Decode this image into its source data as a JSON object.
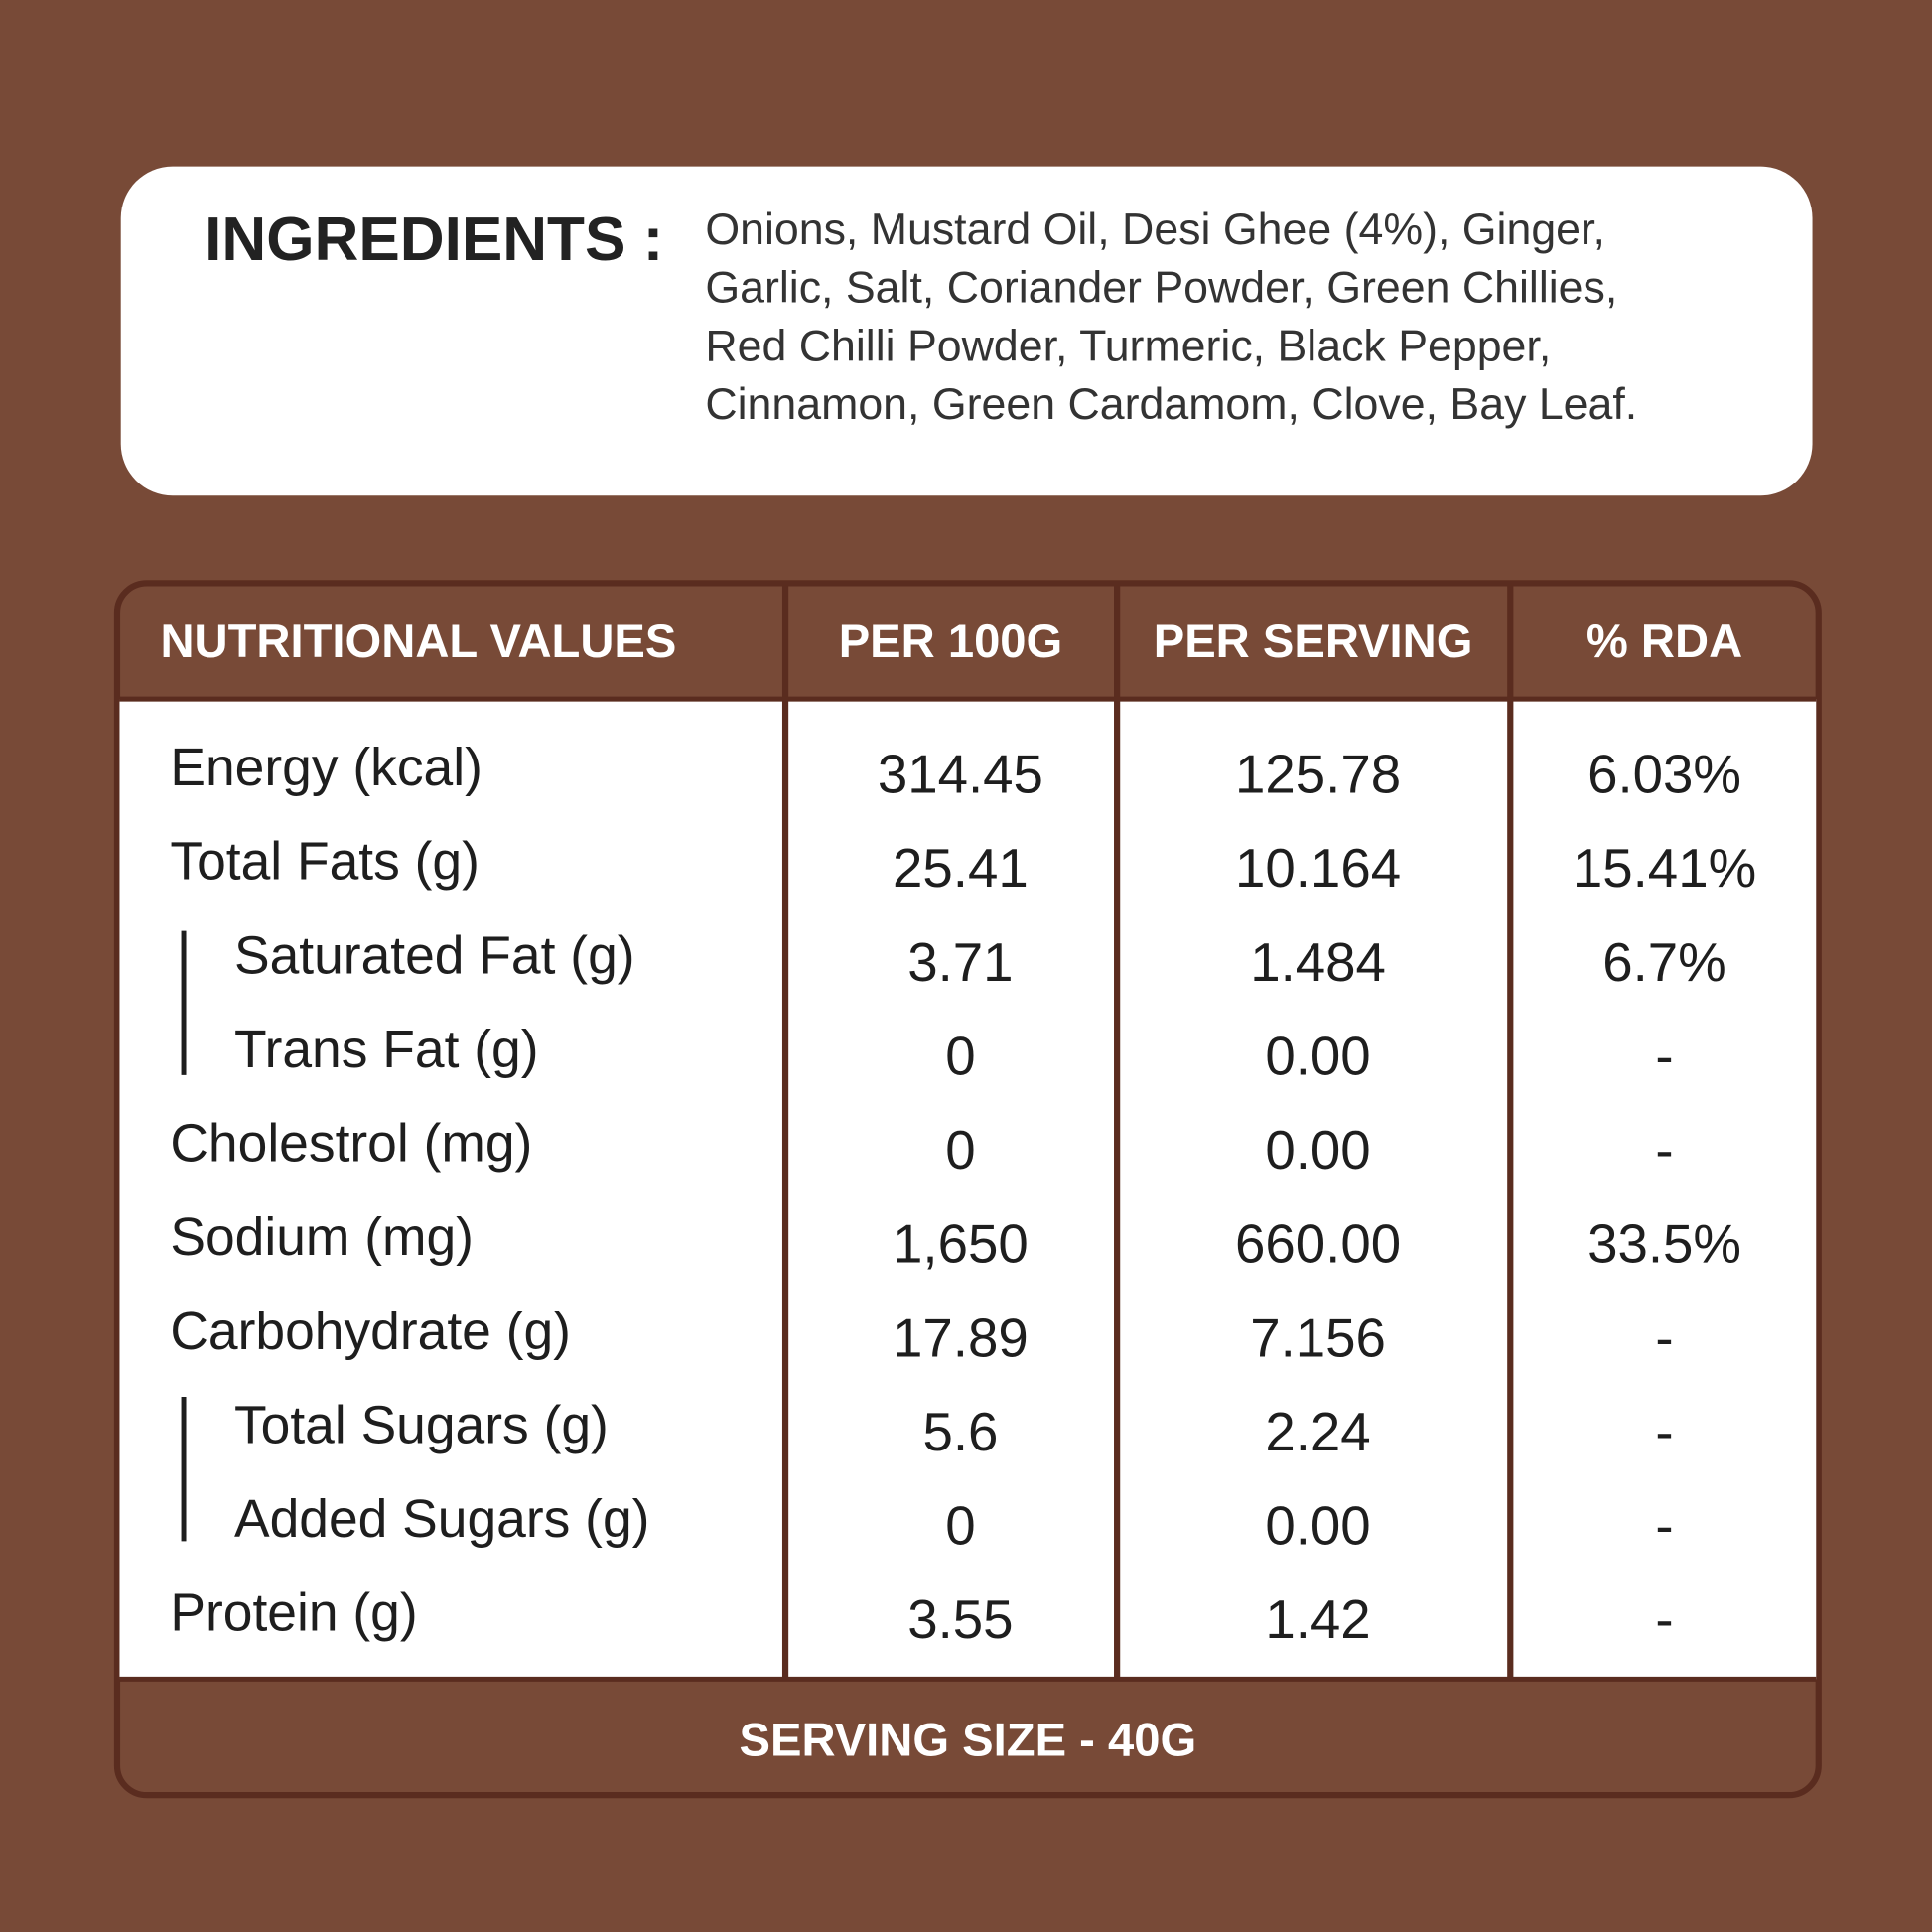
{
  "ingredients": {
    "label": "INGREDIENTS :",
    "lines": [
      "Onions, Mustard Oil, Desi Ghee (4%), Ginger,",
      "Garlic, Salt, Coriander Powder, Green Chillies,",
      "Red Chilli Powder, Turmeric, Black Pepper,",
      "Cinnamon, Green Cardamom, Clove, Bay Leaf."
    ]
  },
  "table": {
    "header": [
      "NUTRITIONAL VALUES",
      "PER 100G",
      "PER SERVING",
      "% RDA"
    ],
    "rows": [
      [
        "Energy (kcal)",
        "314.45",
        "125.78",
        "6.03%"
      ],
      [
        "Total Fats (g)",
        "25.41",
        "10.164",
        "15.41%"
      ],
      [
        "Saturated Fat (g)",
        "3.71",
        "1.484",
        "6.7%"
      ],
      [
        "Trans Fat (g)",
        "0",
        "0.00",
        "-"
      ],
      [
        "Cholestrol (mg)",
        "0",
        "0.00",
        "-"
      ],
      [
        "Sodium (mg)",
        "1,650",
        "660.00",
        "33.5%"
      ],
      [
        "Carbohydrate (g)",
        "17.89",
        "7.156",
        "-"
      ],
      [
        "Total Sugars (g)",
        "5.6",
        "2.24",
        "-"
      ],
      [
        "Added Sugars  (g)",
        "0",
        "0.00",
        "-"
      ],
      [
        "Protein (g)",
        "3.55",
        "1.42",
        "-"
      ]
    ],
    "footer": "SERVING SIZE - 40G"
  }
}
